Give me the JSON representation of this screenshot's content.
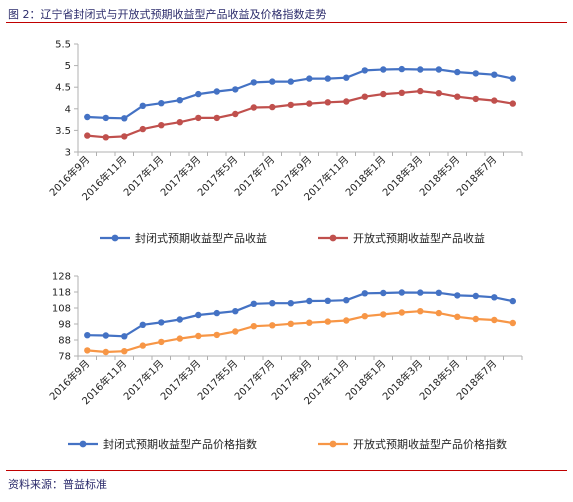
{
  "figure": {
    "title": "图 2：辽宁省封闭式与开放式预期收益型产品收益及价格指数走势",
    "source": "资料来源：普益标准"
  },
  "colors": {
    "series_blue": "#4472c4",
    "series_red": "#c0504d",
    "series_orange": "#f79646",
    "axis": "#b0b0b0",
    "rule": "#c00000"
  },
  "chart_data": [
    {
      "type": "line",
      "title": "",
      "xlabel": "",
      "ylabel": "",
      "ylim": [
        3,
        5.5
      ],
      "yticks": [
        3,
        3.5,
        4,
        4.5,
        5,
        5.5
      ],
      "ytick_labels": [
        "3",
        "3.5",
        "4",
        "4.5",
        "5",
        "5.5"
      ],
      "x": [
        "2016年9月",
        "2016年10月",
        "2016年11月",
        "2016年12月",
        "2017年1月",
        "2017年2月",
        "2017年3月",
        "2017年4月",
        "2017年5月",
        "2017年6月",
        "2017年7月",
        "2017年8月",
        "2017年9月",
        "2017年10月",
        "2017年11月",
        "2017年12月",
        "2018年1月",
        "2018年2月",
        "2018年3月",
        "2018年4月",
        "2018年5月",
        "2018年6月",
        "2018年7月",
        "2018年8月"
      ],
      "xtick_labels": [
        "2016年9月",
        "2016年11月",
        "2017年1月",
        "2017年3月",
        "2017年5月",
        "2017年7月",
        "2017年9月",
        "2017年11月",
        "2018年1月",
        "2018年3月",
        "2018年5月",
        "2018年7月"
      ],
      "grid": false,
      "legend": "bottom",
      "series": [
        {
          "name": "封闭式预期收益型产品收益",
          "color": "#4472c4",
          "values": [
            3.81,
            3.79,
            3.78,
            4.07,
            4.13,
            4.2,
            4.34,
            4.4,
            4.45,
            4.61,
            4.63,
            4.63,
            4.7,
            4.7,
            4.72,
            4.89,
            4.91,
            4.92,
            4.91,
            4.91,
            4.85,
            4.82,
            4.79,
            4.7
          ]
        },
        {
          "name": "开放式预期收益型产品收益",
          "color": "#c0504d",
          "values": [
            3.38,
            3.34,
            3.36,
            3.53,
            3.62,
            3.69,
            3.79,
            3.79,
            3.88,
            4.03,
            4.04,
            4.09,
            4.12,
            4.15,
            4.17,
            4.28,
            4.34,
            4.37,
            4.41,
            4.36,
            4.28,
            4.23,
            4.19,
            4.12
          ]
        }
      ]
    },
    {
      "type": "line",
      "title": "",
      "xlabel": "",
      "ylabel": "",
      "ylim": [
        78,
        128
      ],
      "yticks": [
        78,
        88,
        98,
        108,
        118,
        128
      ],
      "ytick_labels": [
        "78",
        "88",
        "98",
        "108",
        "118",
        "128"
      ],
      "x": [
        "2016年9月",
        "2016年10月",
        "2016年11月",
        "2016年12月",
        "2017年1月",
        "2017年2月",
        "2017年3月",
        "2017年4月",
        "2017年5月",
        "2017年6月",
        "2017年7月",
        "2017年8月",
        "2017年9月",
        "2017年10月",
        "2017年11月",
        "2017年12月",
        "2018年1月",
        "2018年2月",
        "2018年3月",
        "2018年4月",
        "2018年5月",
        "2018年6月",
        "2018年7月",
        "2018年8月"
      ],
      "xtick_labels": [
        "2016年9月",
        "2016年11月",
        "2017年1月",
        "2017年3月",
        "2017年5月",
        "2017年7月",
        "2017年9月",
        "2017年11月",
        "2018年1月",
        "2018年3月",
        "2018年5月",
        "2018年7月"
      ],
      "grid": false,
      "legend": "bottom",
      "series": [
        {
          "name": "封闭式预期收益型产品价格指数",
          "color": "#4472c4",
          "values": [
            91.0,
            90.8,
            90.3,
            97.5,
            99.0,
            100.8,
            103.6,
            104.8,
            106.0,
            110.6,
            111.0,
            111.0,
            112.4,
            112.5,
            112.9,
            117.2,
            117.4,
            117.7,
            117.6,
            117.5,
            115.9,
            115.5,
            114.7,
            112.3
          ]
        },
        {
          "name": "开放式预期收益型产品价格指数",
          "color": "#f79646",
          "values": [
            81.5,
            80.5,
            81.0,
            84.5,
            86.8,
            88.9,
            90.5,
            91.2,
            93.3,
            96.6,
            97.2,
            98.1,
            98.8,
            99.5,
            100.2,
            102.9,
            104.0,
            105.2,
            106.0,
            104.8,
            102.5,
            101.1,
            100.5,
            98.6
          ]
        }
      ]
    }
  ]
}
